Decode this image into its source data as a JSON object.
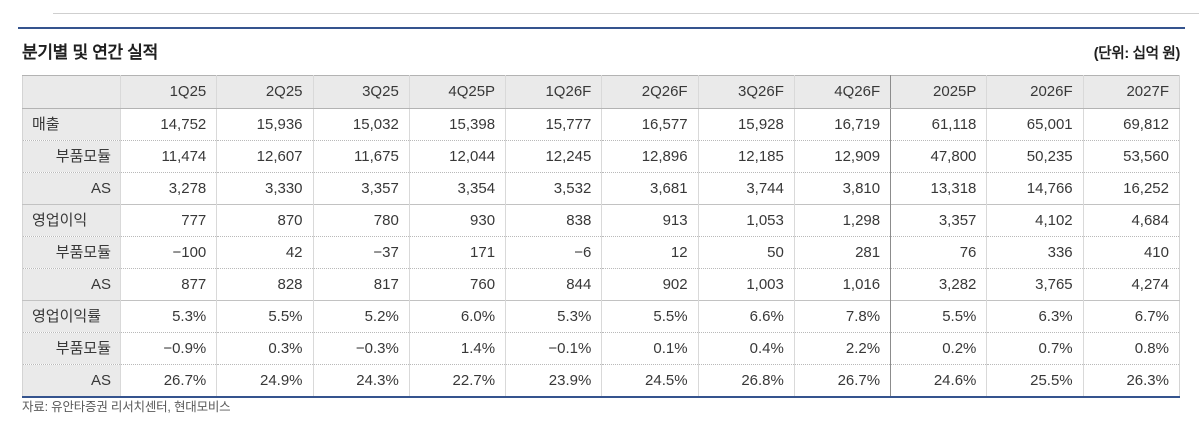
{
  "page": {
    "title": "분기별 및 연간 실적",
    "unit_note": "(단위: 십억 원)",
    "source": "자료: 유안타증권 리서치센터, 현대모비스"
  },
  "colors": {
    "accent_navy": "#35548e",
    "header_bg": "#eaeaea",
    "border_light": "#d9d9d9",
    "text": "#383838"
  },
  "chart_data": {
    "type": "table",
    "title": "분기별 및 연간 실적",
    "unit": "십억 원",
    "columns": [
      "",
      "1Q25",
      "2Q25",
      "3Q25",
      "4Q25P",
      "1Q26F",
      "2Q26F",
      "3Q26F",
      "4Q26F",
      "2025P",
      "2026F",
      "2027F"
    ],
    "annual_start_index": 9,
    "rows": [
      {
        "label": "매출",
        "indent": false,
        "section_start": true,
        "values": [
          "14,752",
          "15,936",
          "15,032",
          "15,398",
          "15,777",
          "16,577",
          "15,928",
          "16,719",
          "61,118",
          "65,001",
          "69,812"
        ]
      },
      {
        "label": "부품모듈",
        "indent": true,
        "section_start": false,
        "values": [
          "11,474",
          "12,607",
          "11,675",
          "12,044",
          "12,245",
          "12,896",
          "12,185",
          "12,909",
          "47,800",
          "50,235",
          "53,560"
        ]
      },
      {
        "label": "AS",
        "indent": true,
        "section_start": false,
        "values": [
          "3,278",
          "3,330",
          "3,357",
          "3,354",
          "3,532",
          "3,681",
          "3,744",
          "3,810",
          "13,318",
          "14,766",
          "16,252"
        ]
      },
      {
        "label": "영업이익",
        "indent": false,
        "section_start": true,
        "values": [
          "777",
          "870",
          "780",
          "930",
          "838",
          "913",
          "1,053",
          "1,298",
          "3,357",
          "4,102",
          "4,684"
        ]
      },
      {
        "label": "부품모듈",
        "indent": true,
        "section_start": false,
        "values": [
          "−100",
          "42",
          "−37",
          "171",
          "−6",
          "12",
          "50",
          "281",
          "76",
          "336",
          "410"
        ]
      },
      {
        "label": "AS",
        "indent": true,
        "section_start": false,
        "values": [
          "877",
          "828",
          "817",
          "760",
          "844",
          "902",
          "1,003",
          "1,016",
          "3,282",
          "3,765",
          "4,274"
        ]
      },
      {
        "label": "영업이익률",
        "indent": false,
        "section_start": true,
        "values": [
          "5.3%",
          "5.5%",
          "5.2%",
          "6.0%",
          "5.3%",
          "5.5%",
          "6.6%",
          "7.8%",
          "5.5%",
          "6.3%",
          "6.7%"
        ]
      },
      {
        "label": "부품모듈",
        "indent": true,
        "section_start": false,
        "values": [
          "−0.9%",
          "0.3%",
          "−0.3%",
          "1.4%",
          "−0.1%",
          "0.1%",
          "0.4%",
          "2.2%",
          "0.2%",
          "0.7%",
          "0.8%"
        ]
      },
      {
        "label": "AS",
        "indent": true,
        "section_start": false,
        "values": [
          "26.7%",
          "24.9%",
          "24.3%",
          "22.7%",
          "23.9%",
          "24.5%",
          "26.8%",
          "26.7%",
          "24.6%",
          "25.5%",
          "26.3%"
        ]
      }
    ]
  }
}
